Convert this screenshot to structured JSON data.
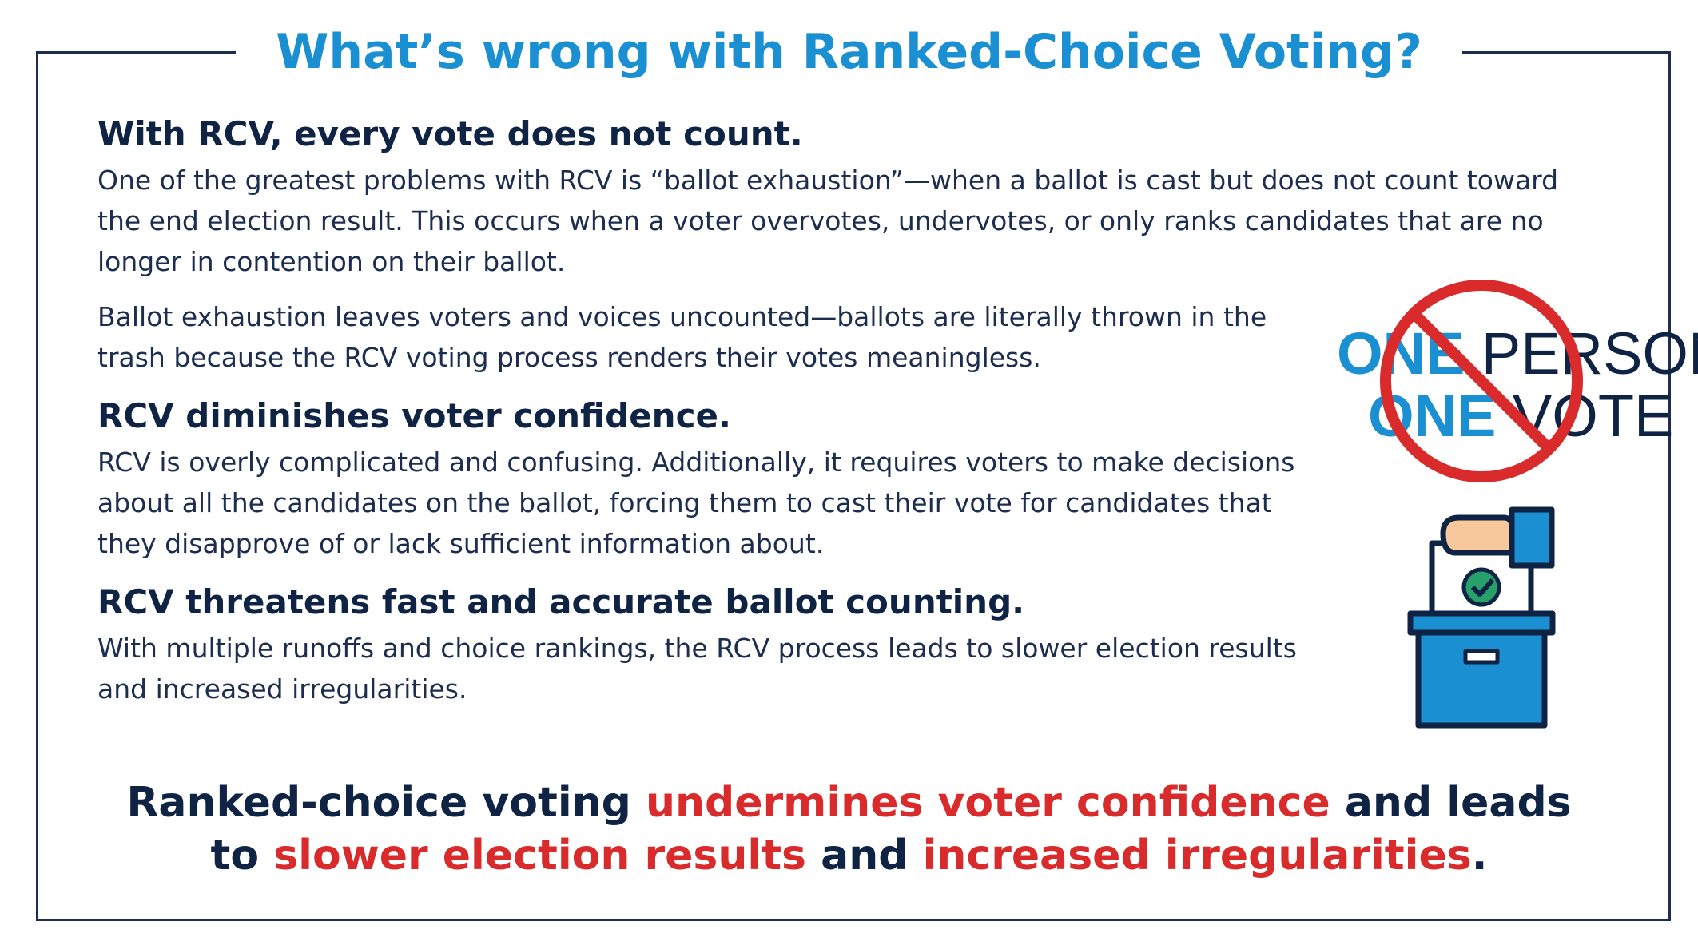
{
  "title": "What’s wrong with Ranked-Choice Voting?",
  "sections": [
    {
      "heading": "With RCV, every vote does not count.",
      "paragraphs": [
        "One of the greatest problems with RCV is “ballot exhaustion”—when a ballot is cast but does not count toward the end election result. This occurs when a voter overvotes, undervotes, or only ranks candidates that are no longer in contention on their ballot.",
        "Ballot exhaustion leaves voters and voices uncounted—ballots are literally thrown in the trash because the RCV voting process renders their votes meaningless."
      ]
    },
    {
      "heading": "RCV diminishes voter confidence.",
      "paragraphs": [
        "RCV is overly complicated and confusing. Additionally, it requires voters to make decisions about all the candidates on the ballot, forcing them to cast their vote for candidates that they disapprove of or lack sufficient information about."
      ]
    },
    {
      "heading": "RCV threatens fast and accurate ballot counting.",
      "paragraphs": [
        "With multiple runoffs and choice rankings, the RCV process leads to slower election results and increased irregularities."
      ]
    }
  ],
  "logo": [
    [
      "ONE",
      "PERSON"
    ],
    [
      "ONE",
      "VOTE"
    ]
  ],
  "conclusion": [
    [
      {
        "text": "Ranked-choice voting ",
        "highlight": false
      },
      {
        "text": "undermines voter confidence",
        "highlight": true
      },
      {
        "text": " and leads",
        "highlight": false
      }
    ],
    [
      {
        "text": "to ",
        "highlight": false
      },
      {
        "text": "slower election results",
        "highlight": true
      },
      {
        "text": " and ",
        "highlight": false
      },
      {
        "text": "increased irregularities",
        "highlight": true
      },
      {
        "text": ".",
        "highlight": false
      }
    ]
  ]
}
